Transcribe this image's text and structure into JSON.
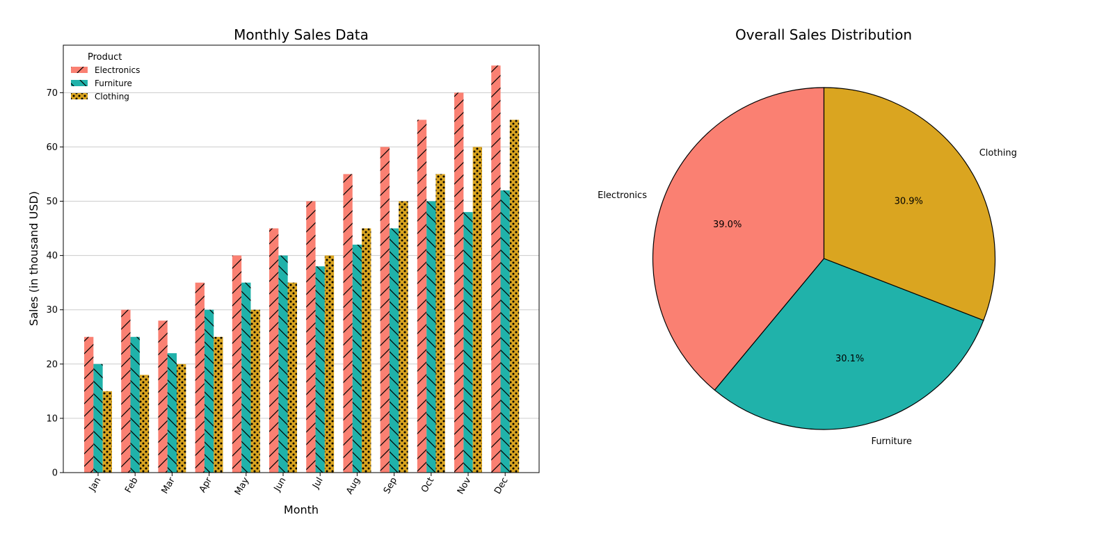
{
  "chart_data": [
    {
      "type": "bar",
      "title": "Monthly Sales Data",
      "xlabel": "Month",
      "ylabel": "Sales (in thousand USD)",
      "categories": [
        "Jan",
        "Feb",
        "Mar",
        "Apr",
        "May",
        "Jun",
        "Jul",
        "Aug",
        "Sep",
        "Oct",
        "Nov",
        "Dec"
      ],
      "ylim": [
        0,
        78.75
      ],
      "yticks": [
        0,
        10,
        20,
        30,
        40,
        50,
        60,
        70
      ],
      "grid": "horizontal",
      "legend": {
        "title": "Product",
        "placement": "top-left"
      },
      "series": [
        {
          "name": "Electronics",
          "color": "#FA8072",
          "hatch": "diagonal",
          "values": [
            25,
            30,
            28,
            35,
            40,
            45,
            50,
            55,
            60,
            65,
            70,
            75
          ]
        },
        {
          "name": "Furniture",
          "color": "#20B2AA",
          "hatch": "backslash",
          "values": [
            20,
            25,
            22,
            30,
            35,
            40,
            38,
            42,
            45,
            50,
            48,
            52
          ]
        },
        {
          "name": "Clothing",
          "color": "#DAA520",
          "hatch": "dots",
          "values": [
            15,
            18,
            20,
            25,
            30,
            35,
            40,
            45,
            50,
            55,
            60,
            65
          ]
        }
      ]
    },
    {
      "type": "pie",
      "title": "Overall Sales Distribution",
      "start_angle_deg": 90,
      "direction": "counterclockwise",
      "slices": [
        {
          "label": "Electronics",
          "value": 578,
          "pct_label": "39.0%",
          "color": "#FA8072"
        },
        {
          "label": "Furniture",
          "value": 447,
          "pct_label": "30.1%",
          "color": "#20B2AA"
        },
        {
          "label": "Clothing",
          "value": 458,
          "pct_label": "30.9%",
          "color": "#DAA520"
        }
      ]
    }
  ]
}
